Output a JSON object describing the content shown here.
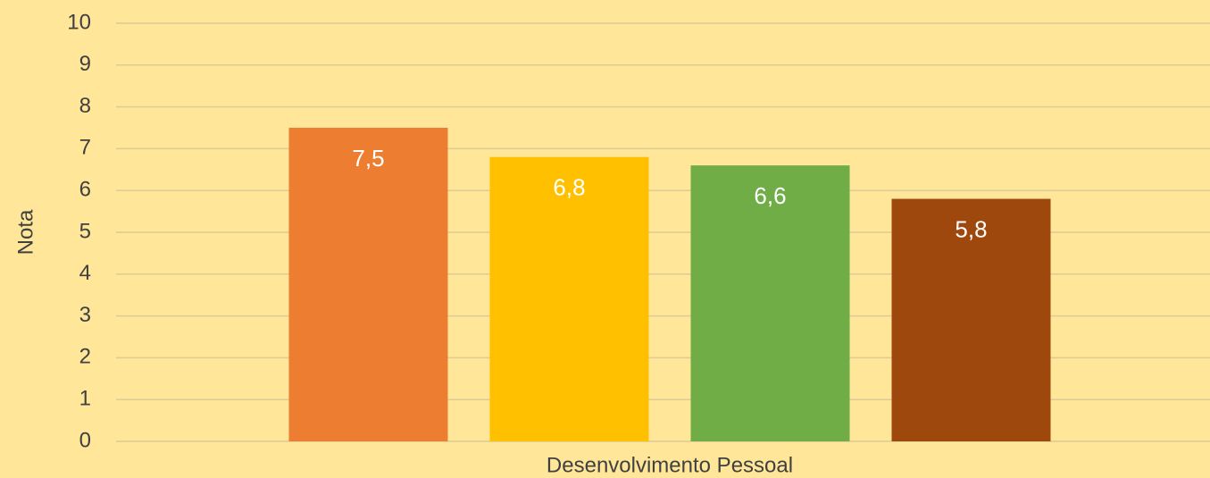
{
  "chart_data": {
    "type": "bar",
    "y_label": "Nota",
    "categories": [
      "Desenvolvimento Pessoal"
    ],
    "series": [
      {
        "color": "#ED7D31",
        "values": [
          7.5
        ],
        "value_labels": [
          "7,5"
        ]
      },
      {
        "color": "#FFC000",
        "values": [
          6.8
        ],
        "value_labels": [
          "6,8"
        ]
      },
      {
        "color": "#70AD47",
        "values": [
          6.6
        ],
        "value_labels": [
          "6,6"
        ]
      },
      {
        "color": "#9E480E",
        "values": [
          5.8
        ],
        "value_labels": [
          "5,8"
        ]
      }
    ],
    "ylim": [
      0,
      10
    ],
    "yticks": [
      0,
      1,
      2,
      3,
      4,
      5,
      6,
      7,
      8,
      9,
      10
    ],
    "grid": true
  }
}
